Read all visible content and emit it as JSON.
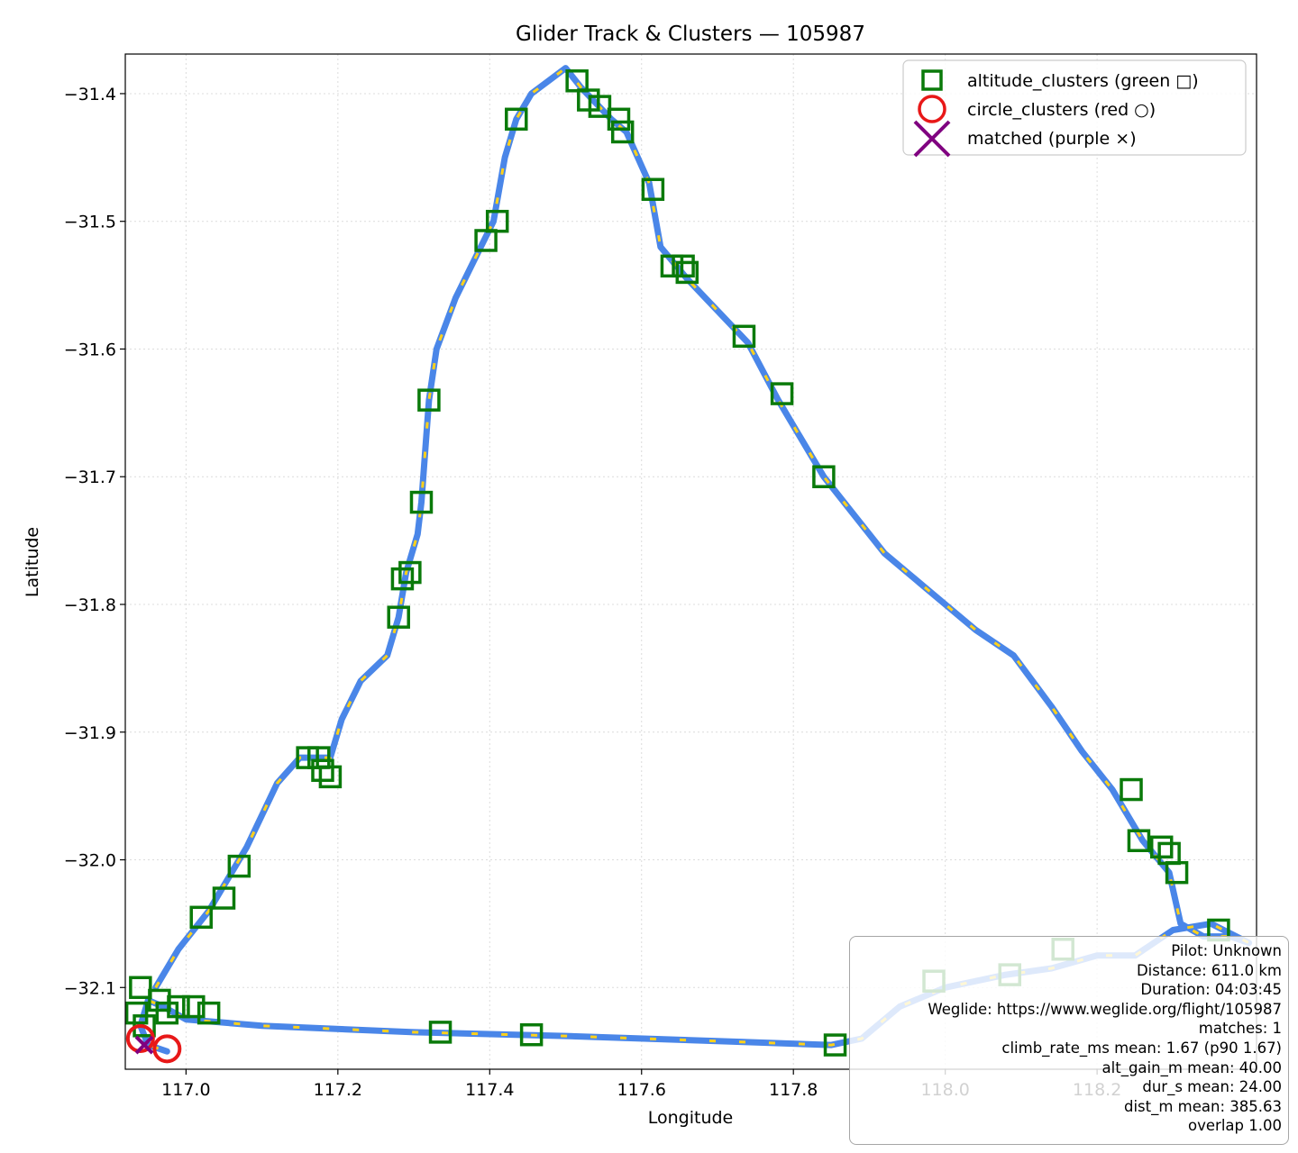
{
  "chart_data": {
    "type": "scatter",
    "title": "Glider Track & Clusters — 105987",
    "xlabel": "Longitude",
    "ylabel": "Latitude",
    "xlim": [
      116.92,
      118.41
    ],
    "ylim": [
      -32.164,
      -31.369
    ],
    "xticks": [
      117.0,
      117.2,
      117.4,
      117.6,
      117.8,
      118.0,
      118.2
    ],
    "xtick_labels": [
      "117.0",
      "117.2",
      "117.4",
      "117.6",
      "117.8",
      "118.0",
      "118.2"
    ],
    "yticks": [
      -31.4,
      -31.5,
      -31.6,
      -31.7,
      -31.8,
      -31.9,
      -32.0,
      -32.1
    ],
    "ytick_labels": [
      "−31.4",
      "−31.5",
      "−31.6",
      "−31.7",
      "−31.8",
      "−31.9",
      "−32.0",
      "−32.1"
    ],
    "grid": true,
    "legend_position": "upper-right",
    "colors": {
      "track": "#4a86e8",
      "track_dash": "#ffd11a",
      "altitude": "#0a7a0a",
      "circle": "#e81818",
      "matched": "#800080"
    },
    "track": [
      [
        116.96,
        -32.1
      ],
      [
        116.99,
        -32.07
      ],
      [
        117.03,
        -32.04
      ],
      [
        117.05,
        -32.02
      ],
      [
        117.08,
        -31.99
      ],
      [
        117.12,
        -31.94
      ],
      [
        117.15,
        -31.92
      ],
      [
        117.19,
        -31.92
      ],
      [
        117.205,
        -31.89
      ],
      [
        117.23,
        -31.86
      ],
      [
        117.265,
        -31.84
      ],
      [
        117.28,
        -31.81
      ],
      [
        117.29,
        -31.775
      ],
      [
        117.305,
        -31.745
      ],
      [
        117.31,
        -31.72
      ],
      [
        117.315,
        -31.68
      ],
      [
        117.32,
        -31.64
      ],
      [
        117.33,
        -31.6
      ],
      [
        117.355,
        -31.56
      ],
      [
        117.38,
        -31.53
      ],
      [
        117.405,
        -31.5
      ],
      [
        117.42,
        -31.45
      ],
      [
        117.435,
        -31.42
      ],
      [
        117.455,
        -31.4
      ],
      [
        117.5,
        -31.38
      ],
      [
        117.52,
        -31.395
      ],
      [
        117.56,
        -31.42
      ],
      [
        117.58,
        -31.43
      ],
      [
        117.61,
        -31.47
      ],
      [
        117.625,
        -31.52
      ],
      [
        117.66,
        -31.545
      ],
      [
        117.7,
        -31.57
      ],
      [
        117.74,
        -31.595
      ],
      [
        117.78,
        -31.64
      ],
      [
        117.81,
        -31.67
      ],
      [
        117.84,
        -31.7
      ],
      [
        117.88,
        -31.73
      ],
      [
        117.92,
        -31.76
      ],
      [
        117.98,
        -31.79
      ],
      [
        118.04,
        -31.82
      ],
      [
        118.09,
        -31.84
      ],
      [
        118.14,
        -31.88
      ],
      [
        118.18,
        -31.915
      ],
      [
        118.22,
        -31.945
      ],
      [
        118.26,
        -31.985
      ],
      [
        118.295,
        -32.01
      ],
      [
        118.31,
        -32.05
      ],
      [
        118.34,
        -32.06
      ],
      [
        118.375,
        -32.06
      ],
      [
        118.4,
        -32.065
      ],
      [
        118.35,
        -32.05
      ],
      [
        118.3,
        -32.055
      ],
      [
        118.25,
        -32.075
      ],
      [
        118.2,
        -32.075
      ],
      [
        118.14,
        -32.085
      ],
      [
        118.08,
        -32.09
      ],
      [
        118.0,
        -32.1
      ],
      [
        117.94,
        -32.115
      ],
      [
        117.89,
        -32.14
      ],
      [
        117.85,
        -32.145
      ],
      [
        117.7,
        -32.142
      ],
      [
        117.5,
        -32.138
      ],
      [
        117.3,
        -32.135
      ],
      [
        117.1,
        -32.13
      ],
      [
        117.0,
        -32.125
      ],
      [
        116.97,
        -32.115
      ],
      [
        116.95,
        -32.11
      ],
      [
        116.94,
        -32.13
      ],
      [
        116.95,
        -32.145
      ],
      [
        116.975,
        -32.15
      ]
    ],
    "altitude_clusters": [
      [
        116.94,
        -32.1
      ],
      [
        116.935,
        -32.12
      ],
      [
        116.945,
        -32.13
      ],
      [
        116.965,
        -32.11
      ],
      [
        116.975,
        -32.12
      ],
      [
        116.99,
        -32.115
      ],
      [
        117.01,
        -32.115
      ],
      [
        117.03,
        -32.12
      ],
      [
        117.02,
        -32.045
      ],
      [
        117.05,
        -32.03
      ],
      [
        117.07,
        -32.005
      ],
      [
        117.16,
        -31.92
      ],
      [
        117.175,
        -31.92
      ],
      [
        117.18,
        -31.93
      ],
      [
        117.19,
        -31.935
      ],
      [
        117.28,
        -31.81
      ],
      [
        117.285,
        -31.78
      ],
      [
        117.295,
        -31.775
      ],
      [
        117.31,
        -31.72
      ],
      [
        117.32,
        -31.64
      ],
      [
        117.395,
        -31.515
      ],
      [
        117.41,
        -31.5
      ],
      [
        117.435,
        -31.42
      ],
      [
        117.515,
        -31.39
      ],
      [
        117.53,
        -31.405
      ],
      [
        117.545,
        -31.41
      ],
      [
        117.57,
        -31.42
      ],
      [
        117.575,
        -31.43
      ],
      [
        117.615,
        -31.475
      ],
      [
        117.64,
        -31.535
      ],
      [
        117.655,
        -31.535
      ],
      [
        117.66,
        -31.54
      ],
      [
        117.735,
        -31.59
      ],
      [
        117.785,
        -31.635
      ],
      [
        117.84,
        -31.7
      ],
      [
        118.245,
        -31.945
      ],
      [
        118.255,
        -31.985
      ],
      [
        118.285,
        -31.99
      ],
      [
        118.295,
        -31.995
      ],
      [
        118.305,
        -32.01
      ],
      [
        118.36,
        -32.055
      ],
      [
        118.155,
        -32.07
      ],
      [
        118.085,
        -32.09
      ],
      [
        117.985,
        -32.095
      ],
      [
        117.855,
        -32.145
      ],
      [
        117.335,
        -32.135
      ],
      [
        117.455,
        -32.137
      ]
    ],
    "circle_clusters": [
      [
        116.94,
        -32.14
      ],
      [
        116.975,
        -32.148
      ]
    ],
    "matched": [
      [
        116.945,
        -32.145
      ]
    ],
    "legend": [
      "altitude_clusters (green □)",
      "circle_clusters (red ○)",
      "matched (purple ×)"
    ],
    "info": {
      "pilot": "Pilot: Unknown",
      "distance": "Distance: 611.0 km",
      "duration": "Duration: 04:03:45",
      "weglide": "Weglide: https://www.weglide.org/flight/105987",
      "matches": "matches: 1",
      "climb_rate": "climb_rate_ms mean: 1.67 (p90 1.67)",
      "alt_gain": "alt_gain_m mean: 40.00",
      "dur": "dur_s mean: 24.00",
      "dist": "dist_m mean: 385.63",
      "overlap": "overlap 1.00"
    }
  }
}
